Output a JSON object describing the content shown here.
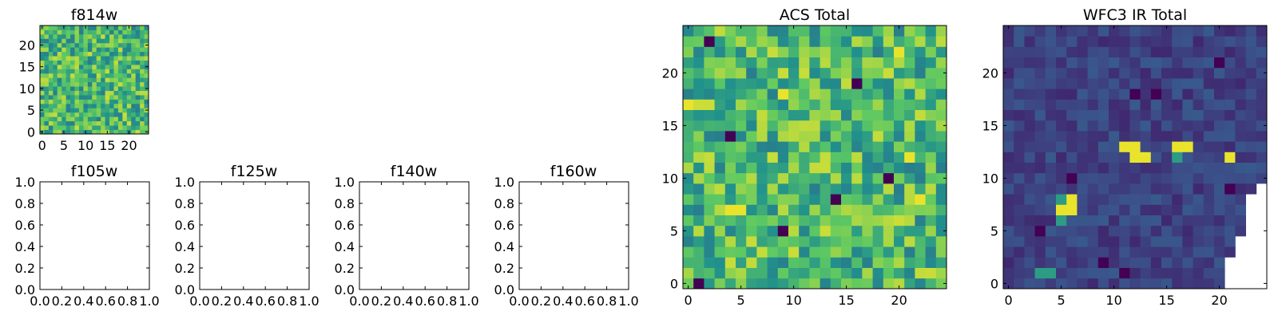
{
  "figure": {
    "background": "#ffffff"
  },
  "colormap": {
    "name": "viridis",
    "stops": [
      "#440154",
      "#3b528b",
      "#21918c",
      "#5ec962",
      "#fde725"
    ]
  },
  "chart_data": [
    {
      "type": "heatmap",
      "title": "f814w",
      "grid_size": 25,
      "xlim": [
        -0.5,
        24.5
      ],
      "ylim": [
        -0.5,
        24.5
      ],
      "xticks": [
        0,
        5,
        10,
        15,
        20
      ],
      "yticks": [
        0,
        5,
        10,
        15,
        20
      ],
      "xtick_labels": [
        "0",
        "5",
        "10",
        "15",
        "20"
      ],
      "ytick_labels": [
        "0",
        "5",
        "10",
        "15",
        "20"
      ],
      "values_pattern": "noise",
      "value_range": [
        0,
        1
      ],
      "noise_seed": 814
    },
    {
      "type": "empty",
      "title": "f105w",
      "xlim": [
        0,
        1
      ],
      "ylim": [
        0,
        1
      ],
      "xtick_labels": [
        "0.0",
        "0.2",
        "0.4",
        "0.6",
        "0.8",
        "1.0"
      ],
      "ytick_labels": [
        "0.0",
        "0.2",
        "0.4",
        "0.6",
        "0.8",
        "1.0"
      ]
    },
    {
      "type": "empty",
      "title": "f125w",
      "xlim": [
        0,
        1
      ],
      "ylim": [
        0,
        1
      ],
      "xtick_labels": [
        "0.0",
        "0.2",
        "0.4",
        "0.6",
        "0.8",
        "1.0"
      ],
      "ytick_labels": [
        "0.0",
        "0.2",
        "0.4",
        "0.6",
        "0.8",
        "1.0"
      ]
    },
    {
      "type": "empty",
      "title": "f140w",
      "xlim": [
        0,
        1
      ],
      "ylim": [
        0,
        1
      ],
      "xtick_labels": [
        "0.0",
        "0.2",
        "0.4",
        "0.6",
        "0.8",
        "1.0"
      ],
      "ytick_labels": [
        "0.0",
        "0.2",
        "0.4",
        "0.6",
        "0.8",
        "1.0"
      ]
    },
    {
      "type": "empty",
      "title": "f160w",
      "xlim": [
        0,
        1
      ],
      "ylim": [
        0,
        1
      ],
      "xtick_labels": [
        "0.0",
        "0.2",
        "0.4",
        "0.6",
        "0.8",
        "1.0"
      ],
      "ytick_labels": [
        "0.0",
        "0.2",
        "0.4",
        "0.6",
        "0.8",
        "1.0"
      ]
    },
    {
      "type": "heatmap",
      "title": "ACS Total",
      "grid_size": 25,
      "xlim": [
        -0.5,
        24.5
      ],
      "ylim": [
        -0.5,
        24.5
      ],
      "xticks": [
        0,
        5,
        10,
        15,
        20
      ],
      "yticks": [
        0,
        5,
        10,
        15,
        20
      ],
      "xtick_labels": [
        "0",
        "5",
        "10",
        "15",
        "20"
      ],
      "ytick_labels": [
        "0",
        "5",
        "10",
        "15",
        "20"
      ],
      "values_pattern": "noise",
      "value_range": [
        0,
        1
      ],
      "noise_seed": 1234,
      "dark_cells": [
        [
          2,
          23
        ],
        [
          1,
          0
        ],
        [
          4,
          14
        ],
        [
          16,
          19
        ],
        [
          9,
          5
        ],
        [
          14,
          8
        ],
        [
          19,
          10
        ]
      ],
      "bright_cells": [
        [
          0,
          17
        ],
        [
          4,
          7
        ],
        [
          5,
          7
        ],
        [
          20,
          22
        ],
        [
          21,
          12
        ],
        [
          22,
          8
        ],
        [
          9,
          18
        ]
      ]
    },
    {
      "type": "heatmap",
      "title": "WFC3 IR Total",
      "grid_size": 25,
      "xlim": [
        -0.5,
        24.5
      ],
      "ylim": [
        -0.5,
        24.5
      ],
      "xticks": [
        0,
        5,
        10,
        15,
        20
      ],
      "yticks": [
        0,
        5,
        10,
        15,
        20
      ],
      "xtick_labels": [
        "0",
        "5",
        "10",
        "15",
        "20"
      ],
      "ytick_labels": [
        "0",
        "5",
        "10",
        "15",
        "20"
      ],
      "values_pattern": "low-noise",
      "value_range": [
        0,
        1
      ],
      "noise_seed": 3,
      "bright_cells": [
        [
          11,
          13
        ],
        [
          12,
          13
        ],
        [
          12,
          12
        ],
        [
          13,
          12
        ],
        [
          16,
          13
        ],
        [
          17,
          13
        ],
        [
          21,
          12
        ],
        [
          5,
          7
        ],
        [
          6,
          7
        ],
        [
          6,
          8
        ]
      ],
      "medium_cells": [
        [
          5,
          8
        ],
        [
          5,
          6
        ],
        [
          16,
          12
        ],
        [
          4,
          1
        ],
        [
          3,
          1
        ]
      ],
      "dark_cells": [
        [
          6,
          10
        ],
        [
          21,
          9
        ],
        [
          9,
          2
        ],
        [
          11,
          1
        ],
        [
          3,
          5
        ],
        [
          20,
          21
        ],
        [
          14,
          18
        ],
        [
          12,
          18
        ]
      ],
      "blank_cells": [
        [
          24,
          9
        ],
        [
          23,
          8
        ],
        [
          24,
          8
        ],
        [
          23,
          7
        ],
        [
          24,
          7
        ],
        [
          23,
          6
        ],
        [
          24,
          6
        ],
        [
          23,
          5
        ],
        [
          24,
          5
        ],
        [
          22,
          4
        ],
        [
          23,
          4
        ],
        [
          24,
          4
        ],
        [
          22,
          3
        ],
        [
          23,
          3
        ],
        [
          24,
          3
        ],
        [
          21,
          2
        ],
        [
          22,
          2
        ],
        [
          23,
          2
        ],
        [
          24,
          2
        ],
        [
          21,
          1
        ],
        [
          22,
          1
        ],
        [
          23,
          1
        ],
        [
          24,
          1
        ],
        [
          21,
          0
        ],
        [
          22,
          0
        ],
        [
          23,
          0
        ],
        [
          24,
          0
        ]
      ]
    }
  ]
}
